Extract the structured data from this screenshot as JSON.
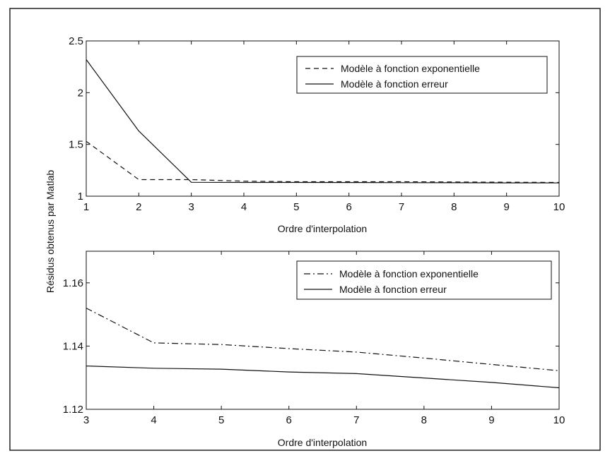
{
  "figure": {
    "ylabel": "Résidus obtenus par Matlab"
  },
  "chart_data": [
    {
      "type": "line",
      "xlabel": "Ordre d'interpolation",
      "ylabel": "",
      "xlim": [
        1,
        10
      ],
      "ylim": [
        1,
        2.5
      ],
      "xticks": [
        "1",
        "2",
        "3",
        "4",
        "5",
        "6",
        "7",
        "8",
        "9",
        "10"
      ],
      "yticks": [
        "1",
        "1.5",
        "2",
        "2.5"
      ],
      "xtick_values": [
        1,
        2,
        3,
        4,
        5,
        6,
        7,
        8,
        9,
        10
      ],
      "ytick_values": [
        1,
        1.5,
        2,
        2.5
      ],
      "grid": false,
      "legend_position": "top-right",
      "x": [
        1,
        2,
        3,
        4,
        5,
        6,
        7,
        8,
        9,
        10
      ],
      "series": [
        {
          "name": "Modèle à fonction exponentielle",
          "style": "dashed",
          "values": [
            1.53,
            1.16,
            1.16,
            1.145,
            1.14,
            1.14,
            1.14,
            1.137,
            1.135,
            1.133
          ]
        },
        {
          "name": "Modèle à fonction erreur",
          "style": "solid",
          "values": [
            2.32,
            1.63,
            1.134,
            1.133,
            1.133,
            1.132,
            1.131,
            1.13,
            1.129,
            1.128
          ]
        }
      ]
    },
    {
      "type": "line",
      "xlabel": "Ordre d'interpolation",
      "ylabel": "",
      "xlim": [
        3,
        10
      ],
      "ylim": [
        1.12,
        1.17
      ],
      "xticks": [
        "3",
        "4",
        "5",
        "6",
        "7",
        "8",
        "9",
        "10"
      ],
      "yticks": [
        "1.12",
        "1.14",
        "1.16"
      ],
      "xtick_values": [
        3,
        4,
        5,
        6,
        7,
        8,
        9,
        10
      ],
      "ytick_values": [
        1.12,
        1.14,
        1.16
      ],
      "grid": false,
      "legend_position": "top-right",
      "x": [
        3,
        4,
        5,
        6,
        7,
        8,
        9,
        10
      ],
      "series": [
        {
          "name": "Modèle à fonction exponentielle",
          "style": "dashdot",
          "values": [
            1.152,
            1.141,
            1.1405,
            1.1392,
            1.1381,
            1.1362,
            1.1342,
            1.1322
          ]
        },
        {
          "name": "Modèle à fonction erreur",
          "style": "solid",
          "values": [
            1.1337,
            1.133,
            1.1327,
            1.1318,
            1.1313,
            1.1299,
            1.1285,
            1.1268
          ]
        }
      ]
    }
  ]
}
